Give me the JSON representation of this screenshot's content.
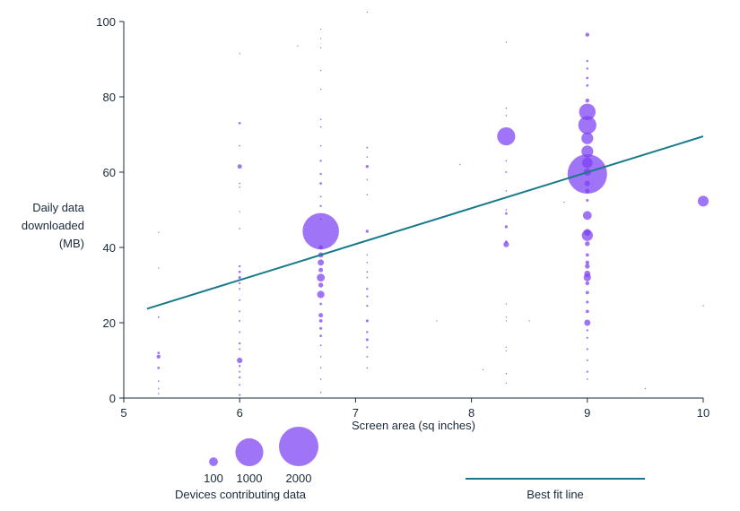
{
  "colors": {
    "bubble": "#7b3ff2",
    "fit_line": "#17798a",
    "axis": "#1a2a3a"
  },
  "chart_data": {
    "type": "scatter",
    "title": "",
    "xlabel": "Screen area (sq inches)",
    "ylabel_lines": [
      "Daily data",
      "downloaded",
      "(MB)"
    ],
    "xlim": [
      5,
      10
    ],
    "ylim": [
      0,
      100
    ],
    "xticks": [
      5,
      6,
      7,
      8,
      9,
      10
    ],
    "yticks": [
      0,
      20,
      40,
      60,
      80,
      100
    ],
    "grid": false,
    "size_legend": {
      "title": "Devices contributing data",
      "entries": [
        {
          "label": "100",
          "devices": 100
        },
        {
          "label": "1000",
          "devices": 1000
        },
        {
          "label": "2000",
          "devices": 2000
        }
      ]
    },
    "line_legend": {
      "label": "Best fit line"
    },
    "best_fit": {
      "x": [
        5.2,
        10
      ],
      "y": [
        23.7,
        69.5
      ]
    },
    "points": [
      {
        "x": 5.3,
        "y": 44,
        "n": 2
      },
      {
        "x": 5.3,
        "y": 34.5,
        "n": 2
      },
      {
        "x": 5.3,
        "y": 21.5,
        "n": 4
      },
      {
        "x": 5.3,
        "y": 12,
        "n": 8
      },
      {
        "x": 5.3,
        "y": 11,
        "n": 20
      },
      {
        "x": 5.3,
        "y": 8,
        "n": 8
      },
      {
        "x": 5.3,
        "y": 4.5,
        "n": 3
      },
      {
        "x": 5.3,
        "y": 2.5,
        "n": 3
      },
      {
        "x": 5.3,
        "y": 1.2,
        "n": 3
      },
      {
        "x": 6,
        "y": 91.5,
        "n": 2
      },
      {
        "x": 6,
        "y": 73,
        "n": 8
      },
      {
        "x": 6,
        "y": 67,
        "n": 3
      },
      {
        "x": 6,
        "y": 61.5,
        "n": 25
      },
      {
        "x": 6,
        "y": 57,
        "n": 3
      },
      {
        "x": 6,
        "y": 56,
        "n": 3
      },
      {
        "x": 6,
        "y": 49.5,
        "n": 2
      },
      {
        "x": 6,
        "y": 45,
        "n": 3
      },
      {
        "x": 6,
        "y": 35,
        "n": 6
      },
      {
        "x": 6,
        "y": 33.5,
        "n": 8
      },
      {
        "x": 6,
        "y": 32,
        "n": 10
      },
      {
        "x": 6,
        "y": 30.5,
        "n": 6
      },
      {
        "x": 6,
        "y": 29,
        "n": 4
      },
      {
        "x": 6,
        "y": 26,
        "n": 4
      },
      {
        "x": 6,
        "y": 23,
        "n": 4
      },
      {
        "x": 6,
        "y": 20.5,
        "n": 4
      },
      {
        "x": 6,
        "y": 17.5,
        "n": 4
      },
      {
        "x": 6,
        "y": 14.5,
        "n": 6
      },
      {
        "x": 6,
        "y": 13,
        "n": 4
      },
      {
        "x": 6,
        "y": 10,
        "n": 40
      },
      {
        "x": 6,
        "y": 8.5,
        "n": 6
      },
      {
        "x": 6,
        "y": 7,
        "n": 4
      },
      {
        "x": 6,
        "y": 5.5,
        "n": 6
      },
      {
        "x": 6,
        "y": 3.5,
        "n": 4
      },
      {
        "x": 6,
        "y": 0.8,
        "n": 5
      },
      {
        "x": 6.7,
        "y": 98,
        "n": 2
      },
      {
        "x": 6.7,
        "y": 95.5,
        "n": 2
      },
      {
        "x": 6.7,
        "y": 93,
        "n": 2
      },
      {
        "x": 6.7,
        "y": 87,
        "n": 2
      },
      {
        "x": 6.7,
        "y": 82,
        "n": 2
      },
      {
        "x": 6.7,
        "y": 74,
        "n": 3
      },
      {
        "x": 6.7,
        "y": 72,
        "n": 3
      },
      {
        "x": 6.7,
        "y": 67,
        "n": 3
      },
      {
        "x": 6.7,
        "y": 63,
        "n": 6
      },
      {
        "x": 6.7,
        "y": 59.5,
        "n": 6
      },
      {
        "x": 6.7,
        "y": 57,
        "n": 8
      },
      {
        "x": 6.7,
        "y": 53.5,
        "n": 4
      },
      {
        "x": 6.7,
        "y": 51,
        "n": 6
      },
      {
        "x": 6.7,
        "y": 47.5,
        "n": 4
      },
      {
        "x": 6.7,
        "y": 44.3,
        "n": 1700
      },
      {
        "x": 6.7,
        "y": 40,
        "n": 25
      },
      {
        "x": 6.7,
        "y": 38,
        "n": 35
      },
      {
        "x": 6.7,
        "y": 36,
        "n": 50
      },
      {
        "x": 6.7,
        "y": 34,
        "n": 25
      },
      {
        "x": 6.7,
        "y": 32,
        "n": 80
      },
      {
        "x": 6.7,
        "y": 30,
        "n": 30
      },
      {
        "x": 6.7,
        "y": 27.5,
        "n": 70
      },
      {
        "x": 6.7,
        "y": 25,
        "n": 8
      },
      {
        "x": 6.7,
        "y": 22,
        "n": 25
      },
      {
        "x": 6.7,
        "y": 20.5,
        "n": 15
      },
      {
        "x": 6.7,
        "y": 18.5,
        "n": 10
      },
      {
        "x": 6.7,
        "y": 16.5,
        "n": 8
      },
      {
        "x": 6.7,
        "y": 14,
        "n": 4
      },
      {
        "x": 6.7,
        "y": 11,
        "n": 3
      },
      {
        "x": 6.7,
        "y": 8,
        "n": 3
      },
      {
        "x": 6.7,
        "y": 5,
        "n": 3
      },
      {
        "x": 6.7,
        "y": 1.5,
        "n": 3
      },
      {
        "x": 7.1,
        "y": 102.5,
        "n": 2
      },
      {
        "x": 7.1,
        "y": 66.5,
        "n": 4
      },
      {
        "x": 7.1,
        "y": 64,
        "n": 3
      },
      {
        "x": 7.1,
        "y": 61.5,
        "n": 12
      },
      {
        "x": 7.1,
        "y": 58,
        "n": 3
      },
      {
        "x": 7.1,
        "y": 54,
        "n": 3
      },
      {
        "x": 7.1,
        "y": 44.3,
        "n": 12
      },
      {
        "x": 7.1,
        "y": 38,
        "n": 3
      },
      {
        "x": 7.1,
        "y": 36,
        "n": 3
      },
      {
        "x": 7.1,
        "y": 33.5,
        "n": 4
      },
      {
        "x": 7.1,
        "y": 32,
        "n": 3
      },
      {
        "x": 7.1,
        "y": 29,
        "n": 6
      },
      {
        "x": 7.1,
        "y": 27,
        "n": 5
      },
      {
        "x": 7.1,
        "y": 24.5,
        "n": 5
      },
      {
        "x": 7.1,
        "y": 20.5,
        "n": 10
      },
      {
        "x": 7.1,
        "y": 17.5,
        "n": 6
      },
      {
        "x": 7.1,
        "y": 15.5,
        "n": 10
      },
      {
        "x": 7.1,
        "y": 13.5,
        "n": 5
      },
      {
        "x": 7.1,
        "y": 11,
        "n": 4
      },
      {
        "x": 7.1,
        "y": 8,
        "n": 3
      },
      {
        "x": 6.5,
        "y": 93.5,
        "n": 1
      },
      {
        "x": 8.3,
        "y": 94.5,
        "n": 2
      },
      {
        "x": 8.3,
        "y": 77,
        "n": 3
      },
      {
        "x": 8.3,
        "y": 75,
        "n": 3
      },
      {
        "x": 8.3,
        "y": 69.5,
        "n": 420
      },
      {
        "x": 8.3,
        "y": 63,
        "n": 3
      },
      {
        "x": 8.3,
        "y": 60,
        "n": 4
      },
      {
        "x": 8.3,
        "y": 55,
        "n": 3
      },
      {
        "x": 8.3,
        "y": 50,
        "n": 3
      },
      {
        "x": 8.3,
        "y": 49,
        "n": 8
      },
      {
        "x": 8.3,
        "y": 45.5,
        "n": 12
      },
      {
        "x": 8.3,
        "y": 41.5,
        "n": 8
      },
      {
        "x": 8.3,
        "y": 40.8,
        "n": 40
      },
      {
        "x": 8.3,
        "y": 25,
        "n": 2
      },
      {
        "x": 8.3,
        "y": 21.5,
        "n": 2
      },
      {
        "x": 8.3,
        "y": 20.5,
        "n": 2
      },
      {
        "x": 8.3,
        "y": 13.5,
        "n": 2
      },
      {
        "x": 8.3,
        "y": 12.5,
        "n": 2
      },
      {
        "x": 8.3,
        "y": 6.5,
        "n": 3
      },
      {
        "x": 8.3,
        "y": 4,
        "n": 2
      },
      {
        "x": 9,
        "y": 96.5,
        "n": 20
      },
      {
        "x": 9,
        "y": 89.5,
        "n": 6
      },
      {
        "x": 9,
        "y": 87.5,
        "n": 6
      },
      {
        "x": 9,
        "y": 85,
        "n": 8
      },
      {
        "x": 9,
        "y": 83,
        "n": 8
      },
      {
        "x": 9,
        "y": 79,
        "n": 20
      },
      {
        "x": 9,
        "y": 76,
        "n": 350
      },
      {
        "x": 9,
        "y": 72.5,
        "n": 420
      },
      {
        "x": 9,
        "y": 69,
        "n": 180
      },
      {
        "x": 9,
        "y": 65.5,
        "n": 180
      },
      {
        "x": 9,
        "y": 62.5,
        "n": 140
      },
      {
        "x": 9,
        "y": 60,
        "n": 70
      },
      {
        "x": 9,
        "y": 59.5,
        "n": 2000
      },
      {
        "x": 9,
        "y": 57,
        "n": 40
      },
      {
        "x": 9,
        "y": 55,
        "n": 25
      },
      {
        "x": 9,
        "y": 52.5,
        "n": 10
      },
      {
        "x": 9,
        "y": 48.5,
        "n": 100
      },
      {
        "x": 9,
        "y": 44,
        "n": 60
      },
      {
        "x": 9,
        "y": 43.2,
        "n": 160
      },
      {
        "x": 9,
        "y": 41,
        "n": 30
      },
      {
        "x": 9,
        "y": 38,
        "n": 15
      },
      {
        "x": 9,
        "y": 36,
        "n": 20
      },
      {
        "x": 9,
        "y": 35,
        "n": 30
      },
      {
        "x": 9,
        "y": 33,
        "n": 50
      },
      {
        "x": 9,
        "y": 32,
        "n": 70
      },
      {
        "x": 9,
        "y": 30.5,
        "n": 20
      },
      {
        "x": 9,
        "y": 28,
        "n": 15
      },
      {
        "x": 9,
        "y": 25.5,
        "n": 10
      },
      {
        "x": 9,
        "y": 23,
        "n": 15
      },
      {
        "x": 9,
        "y": 20,
        "n": 50
      },
      {
        "x": 9,
        "y": 18,
        "n": 6
      },
      {
        "x": 9,
        "y": 16,
        "n": 5
      },
      {
        "x": 9,
        "y": 13,
        "n": 5
      },
      {
        "x": 9,
        "y": 10,
        "n": 4
      },
      {
        "x": 9,
        "y": 7,
        "n": 5
      },
      {
        "x": 9,
        "y": 5,
        "n": 3
      },
      {
        "x": 9.5,
        "y": 2.5,
        "n": 2
      },
      {
        "x": 10,
        "y": 52.3,
        "n": 150
      },
      {
        "x": 10,
        "y": 24.5,
        "n": 2
      },
      {
        "x": 7.7,
        "y": 20.5,
        "n": 1
      },
      {
        "x": 8.5,
        "y": 20.5,
        "n": 1
      },
      {
        "x": 8.1,
        "y": 7.5,
        "n": 1
      },
      {
        "x": 8.8,
        "y": 52,
        "n": 1
      },
      {
        "x": 7.9,
        "y": 62,
        "n": 1
      }
    ]
  }
}
